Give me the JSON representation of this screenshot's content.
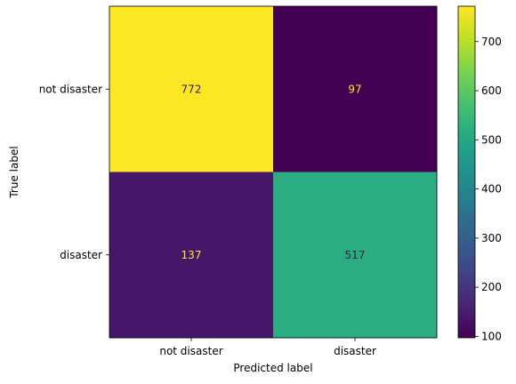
{
  "chart_data": {
    "type": "heatmap",
    "title": "",
    "xlabel": "Predicted label",
    "ylabel": "True label",
    "x_categories": [
      "not disaster",
      "disaster"
    ],
    "y_categories": [
      "not disaster",
      "disaster"
    ],
    "values": [
      [
        772,
        97
      ],
      [
        137,
        517
      ]
    ],
    "colormap": "viridis",
    "colorbar": {
      "vmin": 97,
      "vmax": 772,
      "ticks": [
        100,
        200,
        300,
        400,
        500,
        600,
        700
      ]
    },
    "grid": false
  }
}
